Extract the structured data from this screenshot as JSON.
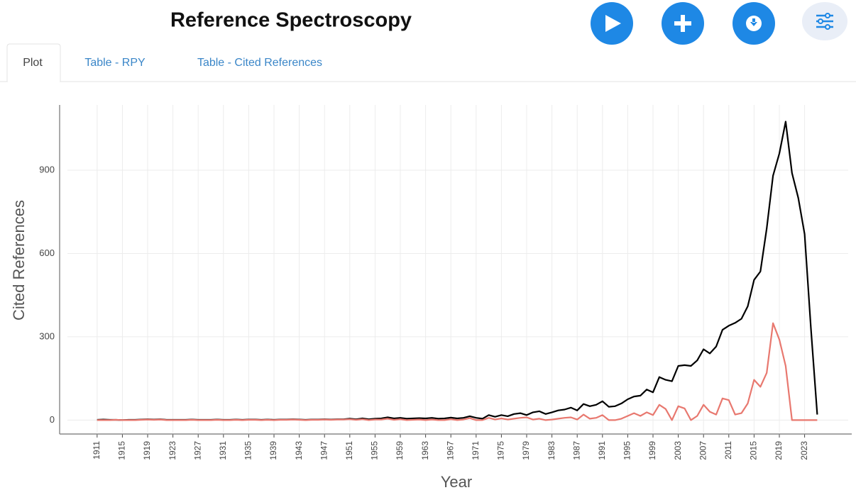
{
  "header": {
    "title": "Reference Spectroscopy"
  },
  "tabs": [
    "Plot",
    "Table - RPY",
    "Table - Cited References"
  ],
  "chart_data": {
    "type": "line",
    "xlabel": "Year",
    "ylabel": "Cited References",
    "x": [
      1911,
      1912,
      1913,
      1914,
      1915,
      1916,
      1917,
      1918,
      1919,
      1920,
      1921,
      1922,
      1923,
      1924,
      1925,
      1926,
      1927,
      1928,
      1929,
      1930,
      1931,
      1932,
      1933,
      1934,
      1935,
      1936,
      1937,
      1938,
      1939,
      1940,
      1941,
      1942,
      1943,
      1944,
      1945,
      1946,
      1947,
      1948,
      1949,
      1950,
      1951,
      1952,
      1953,
      1954,
      1955,
      1956,
      1957,
      1958,
      1959,
      1960,
      1961,
      1962,
      1963,
      1964,
      1965,
      1966,
      1967,
      1968,
      1969,
      1970,
      1971,
      1972,
      1973,
      1974,
      1975,
      1976,
      1977,
      1978,
      1979,
      1980,
      1981,
      1982,
      1983,
      1984,
      1985,
      1986,
      1987,
      1988,
      1989,
      1990,
      1991,
      1992,
      1993,
      1994,
      1995,
      1996,
      1997,
      1998,
      1999,
      2000,
      2001,
      2002,
      2003,
      2004,
      2005,
      2006,
      2007,
      2008,
      2009,
      2010,
      2011,
      2012,
      2013,
      2014,
      2015,
      2016,
      2017,
      2018,
      2019,
      2020,
      2021,
      2022,
      2023,
      2024,
      2025
    ],
    "series": [
      {
        "color": "#000000",
        "values": [
          1,
          2,
          1,
          1,
          0,
          1,
          1,
          2,
          3,
          2,
          3,
          1,
          1,
          1,
          1,
          2,
          1,
          1,
          1,
          2,
          1,
          1,
          2,
          1,
          2,
          2,
          1,
          2,
          1,
          2,
          2,
          3,
          2,
          1,
          2,
          2,
          3,
          2,
          3,
          3,
          5,
          3,
          6,
          3,
          5,
          6,
          10,
          6,
          8,
          5,
          6,
          7,
          6,
          8,
          5,
          6,
          9,
          6,
          8,
          14,
          8,
          5,
          18,
          12,
          18,
          14,
          22,
          25,
          18,
          28,
          32,
          22,
          28,
          35,
          38,
          45,
          35,
          58,
          50,
          55,
          68,
          48,
          50,
          60,
          75,
          85,
          88,
          110,
          100,
          155,
          145,
          140,
          195,
          198,
          195,
          215,
          255,
          240,
          265,
          325,
          340,
          350,
          365,
          410,
          505,
          535,
          690,
          880,
          960,
          1075,
          890,
          800,
          670,
          330,
          20
        ]
      },
      {
        "color": "#e8786f",
        "values": [
          0,
          0,
          0,
          1,
          0,
          0,
          0,
          1,
          2,
          1,
          2,
          0,
          0,
          0,
          0,
          1,
          0,
          0,
          0,
          1,
          0,
          0,
          1,
          0,
          1,
          1,
          0,
          1,
          0,
          1,
          1,
          2,
          1,
          0,
          1,
          1,
          2,
          1,
          2,
          2,
          3,
          1,
          3,
          0,
          2,
          2,
          5,
          1,
          3,
          0,
          1,
          2,
          0,
          2,
          0,
          0,
          3,
          0,
          2,
          7,
          0,
          0,
          8,
          2,
          6,
          2,
          5,
          8,
          10,
          2,
          5,
          0,
          2,
          5,
          8,
          10,
          2,
          20,
          5,
          8,
          18,
          0,
          0,
          5,
          15,
          25,
          15,
          28,
          18,
          55,
          40,
          0,
          50,
          42,
          0,
          15,
          55,
          30,
          20,
          78,
          72,
          20,
          25,
          60,
          145,
          120,
          170,
          349,
          290,
          195,
          0,
          0,
          0,
          0,
          0
        ]
      }
    ],
    "xlim": [
      1906.3,
      2029.9
    ],
    "ylim": [
      -45,
      1135
    ],
    "xticks": [
      1911,
      1915,
      1919,
      1923,
      1927,
      1931,
      1935,
      1939,
      1943,
      1947,
      1951,
      1955,
      1959,
      1963,
      1967,
      1971,
      1975,
      1979,
      1983,
      1987,
      1991,
      1995,
      1999,
      2003,
      2007,
      2011,
      2015,
      2019,
      2023
    ],
    "yticks": [
      0,
      300,
      600,
      900
    ],
    "grid": true
  }
}
